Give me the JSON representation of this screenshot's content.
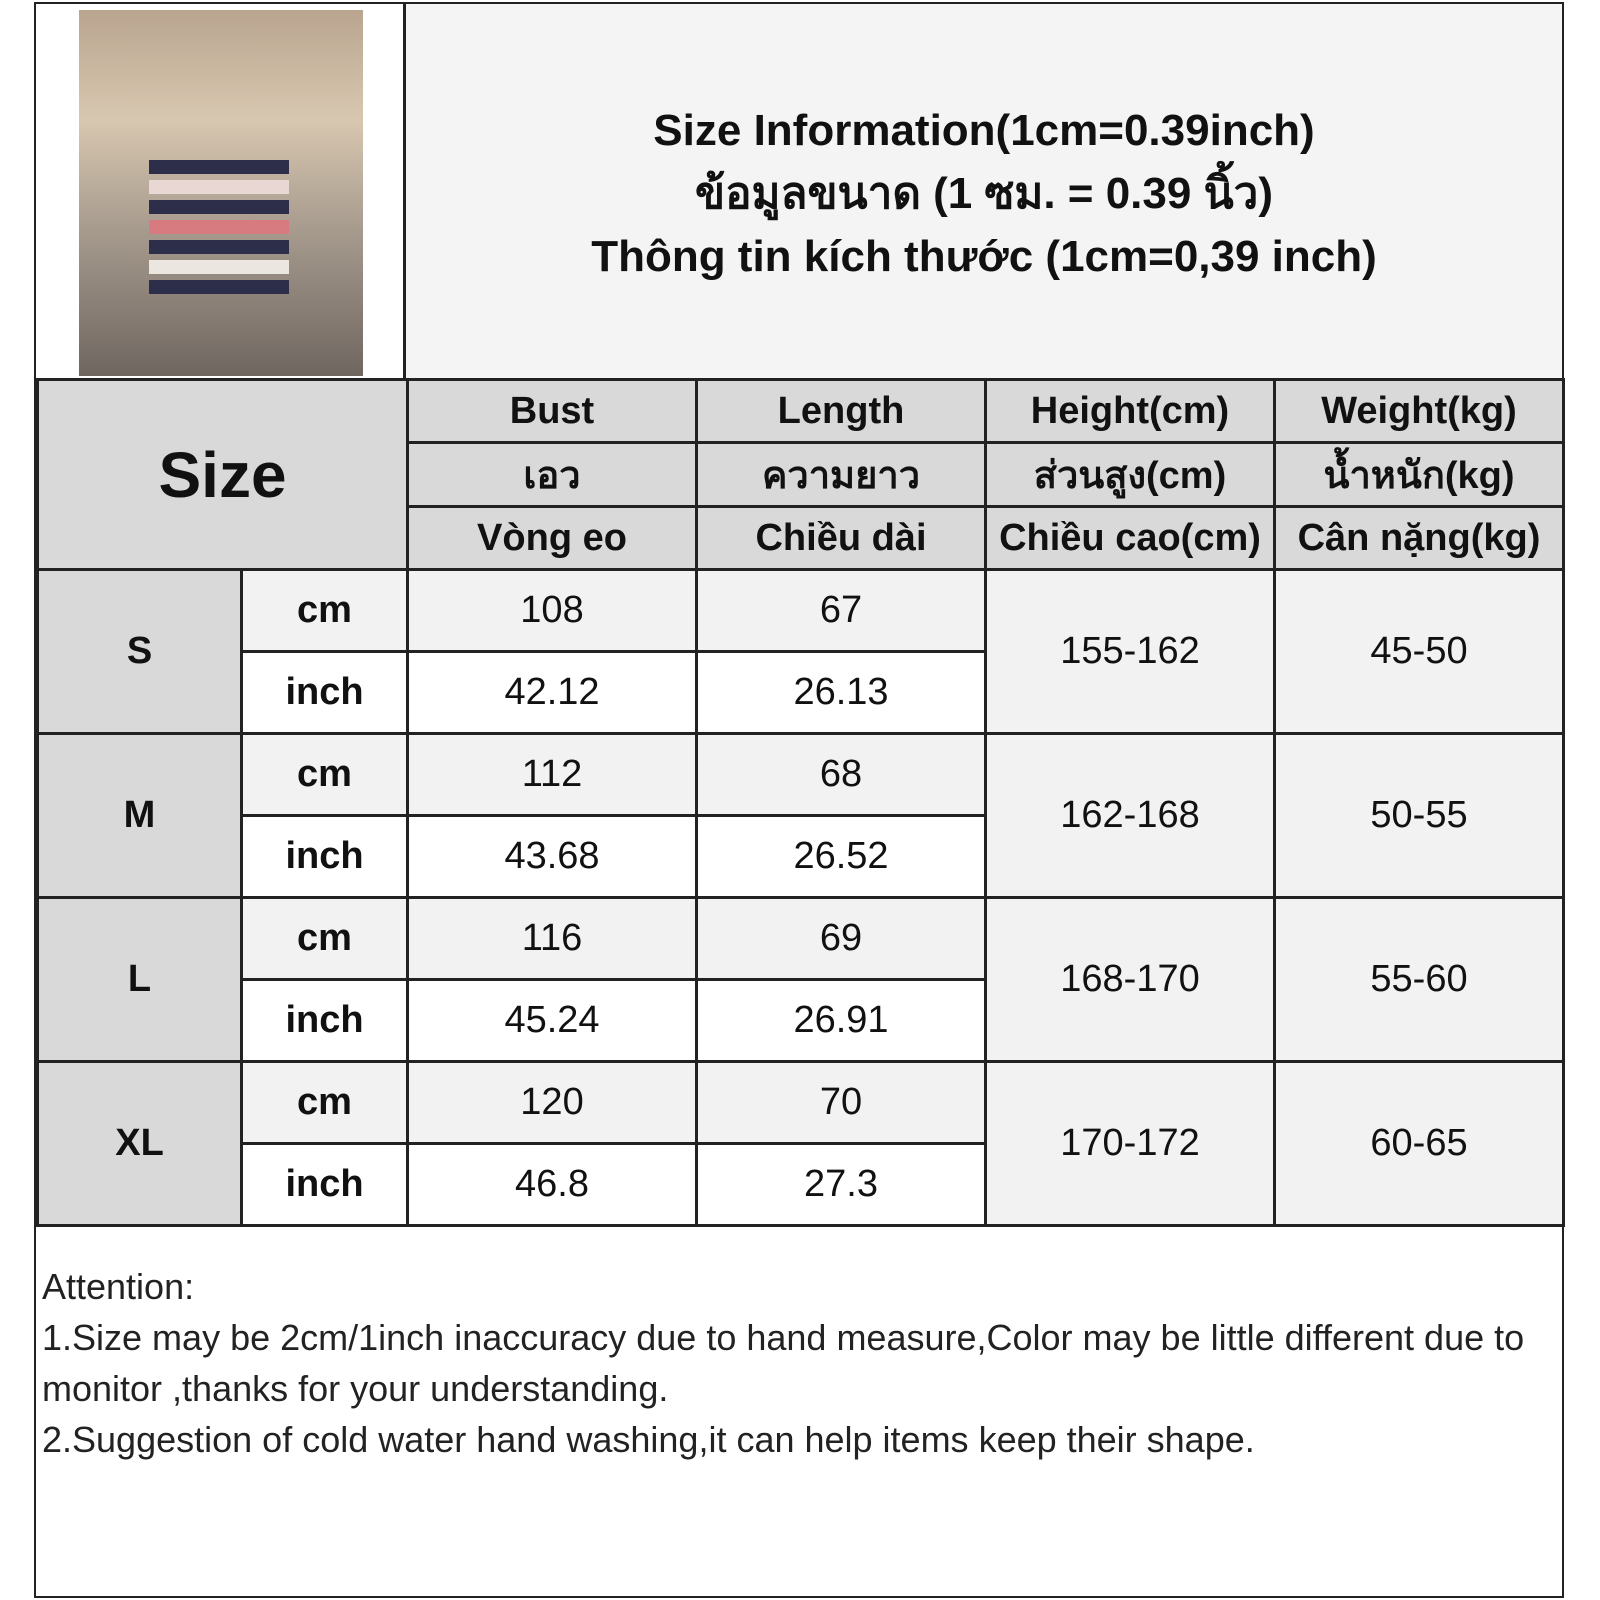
{
  "title_lines": [
    "Size Information(1cm=0.39inch)",
    "ข้อมูลขนาด (1 ซม. = 0.39 นิ้ว)",
    "Thông tin kích thước (1cm=0,39 inch)"
  ],
  "size_label": "Size",
  "headers": [
    [
      "Bust",
      "เอว",
      "Vòng eo"
    ],
    [
      "Length",
      "ความยาว",
      "Chiều dài"
    ],
    [
      "Height(cm)",
      "ส่วนสูง(cm)",
      "Chiều cao(cm)"
    ],
    [
      "Weight(kg)",
      "น้ำหนัก(kg)",
      "Cân nặng(kg)"
    ]
  ],
  "units": [
    "cm",
    "inch"
  ],
  "rows": [
    {
      "size": "S",
      "cm": [
        "108",
        "67"
      ],
      "inch": [
        "42.12",
        "26.13"
      ],
      "height": "155-162",
      "weight": "45-50"
    },
    {
      "size": "M",
      "cm": [
        "112",
        "68"
      ],
      "inch": [
        "43.68",
        "26.52"
      ],
      "height": "162-168",
      "weight": "50-55"
    },
    {
      "size": "L",
      "cm": [
        "116",
        "69"
      ],
      "inch": [
        "45.24",
        "26.91"
      ],
      "height": "168-170",
      "weight": "55-60"
    },
    {
      "size": "XL",
      "cm": [
        "120",
        "70"
      ],
      "inch": [
        "46.8",
        "27.3"
      ],
      "height": "170-172",
      "weight": "60-65"
    }
  ],
  "notes": [
    "Attention:",
    "1.Size may be 2cm/1inch inaccuracy due to hand measure,Color may be little different due to monitor ,thanks for your understanding.",
    "2.Suggestion of cold water hand washing,it can help items keep their shape."
  ],
  "colors": {
    "header_bg": "#d9d9d9",
    "cell_bg": "#f2f2f2",
    "border": "#222222"
  }
}
